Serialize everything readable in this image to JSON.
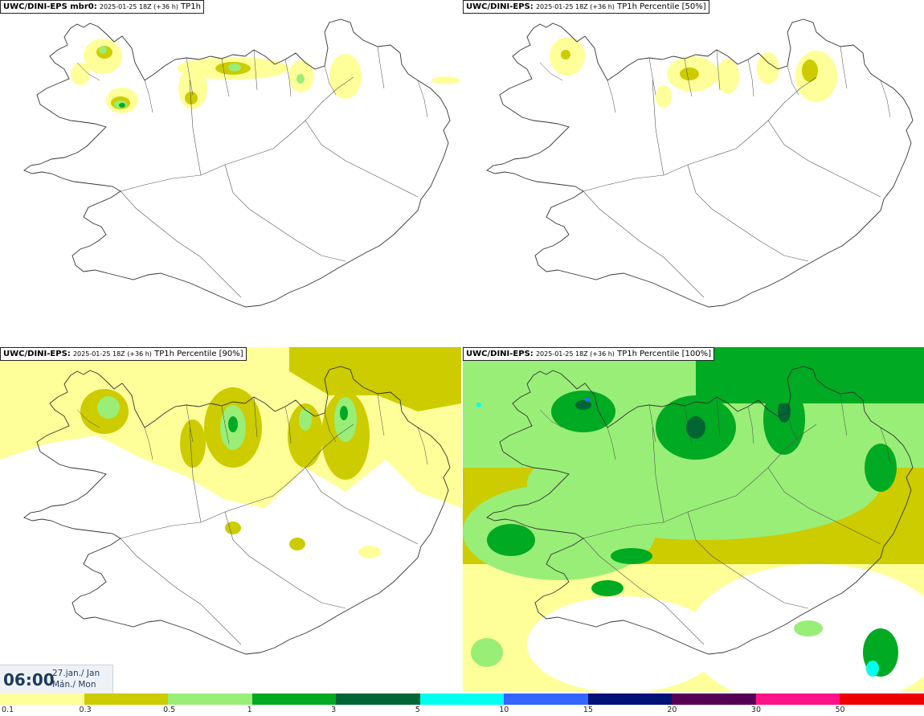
{
  "panels": [
    {
      "model": "UWC/DINI-EPS mbr0:",
      "run": "2025-01-25 18Z (+36 h)",
      "field": "TP1h"
    },
    {
      "model": "UWC/DINI-EPS:",
      "run": "2025-01-25 18Z (+36 h)",
      "field": "TP1h Percentile [50%]"
    },
    {
      "model": "UWC/DINI-EPS:",
      "run": "2025-01-25 18Z (+36 h)",
      "field": "TP1h Percentile [90%]"
    },
    {
      "model": "UWC/DINI-EPS:",
      "run": "2025-01-25 18Z (+36 h)",
      "field": "TP1h Percentile [100%]"
    }
  ],
  "valid_time": {
    "time": "06:00",
    "date_line1": "27.jan./ Jan",
    "date_line2": "Mán./ Mon"
  },
  "colorbar": {
    "colors": [
      "#ffff99",
      "#cccc00",
      "#99ee77",
      "#00aa22",
      "#006633",
      "#00ffee",
      "#3366ff",
      "#001177",
      "#550055",
      "#ff1188",
      "#ee0000"
    ],
    "ticks": [
      "0.1",
      "0.3",
      "0.5",
      "1",
      "3",
      "5",
      "10",
      "15",
      "20",
      "30",
      "50"
    ]
  },
  "palette": {
    "coast": "#333333",
    "light_yellow": "#ffff99",
    "olive": "#cccc00",
    "light_green": "#99ee77",
    "green": "#00aa22",
    "dark_green": "#006633",
    "cyan": "#00ffee",
    "blue": "#3366ff"
  }
}
